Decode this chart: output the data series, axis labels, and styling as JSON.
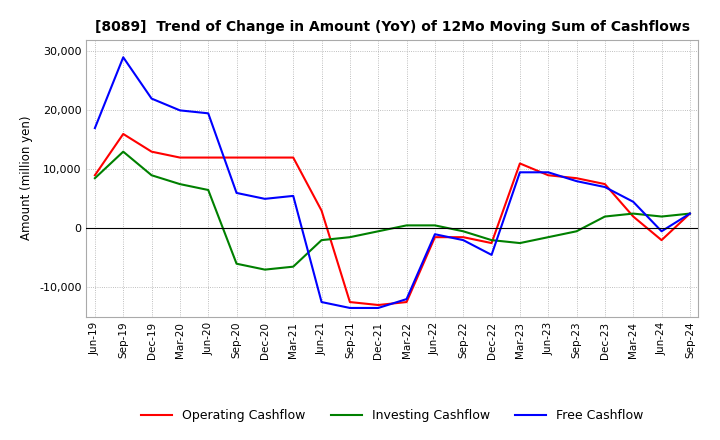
{
  "title": "[8089]  Trend of Change in Amount (YoY) of 12Mo Moving Sum of Cashflows",
  "ylabel": "Amount (million yen)",
  "x_labels": [
    "Jun-19",
    "Sep-19",
    "Dec-19",
    "Mar-20",
    "Jun-20",
    "Sep-20",
    "Dec-20",
    "Mar-21",
    "Jun-21",
    "Sep-21",
    "Dec-21",
    "Mar-22",
    "Jun-22",
    "Sep-22",
    "Dec-22",
    "Mar-23",
    "Jun-23",
    "Sep-23",
    "Dec-23",
    "Mar-24",
    "Jun-24",
    "Sep-24"
  ],
  "operating": [
    9000,
    16000,
    13000,
    12000,
    12000,
    12000,
    12000,
    12000,
    3000,
    -12500,
    -13000,
    -12500,
    -1500,
    -1500,
    -2500,
    11000,
    9000,
    8500,
    7500,
    2000,
    -2000,
    2500
  ],
  "investing": [
    8500,
    13000,
    9000,
    7500,
    6500,
    -6000,
    -7000,
    -6500,
    -2000,
    -1500,
    -500,
    500,
    500,
    -500,
    -2000,
    -2500,
    -1500,
    -500,
    2000,
    2500,
    2000,
    2500
  ],
  "free": [
    17000,
    29000,
    22000,
    20000,
    19500,
    6000,
    5000,
    5500,
    -12500,
    -13500,
    -13500,
    -12000,
    -1000,
    -2000,
    -4500,
    9500,
    9500,
    8000,
    7000,
    4500,
    -500,
    2500
  ],
  "operating_color": "#FF0000",
  "investing_color": "#008000",
  "free_color": "#0000FF",
  "ylim": [
    -15000,
    32000
  ],
  "yticks": [
    -10000,
    0,
    10000,
    20000,
    30000
  ],
  "background_color": "#FFFFFF",
  "grid_color": "#AAAAAA"
}
